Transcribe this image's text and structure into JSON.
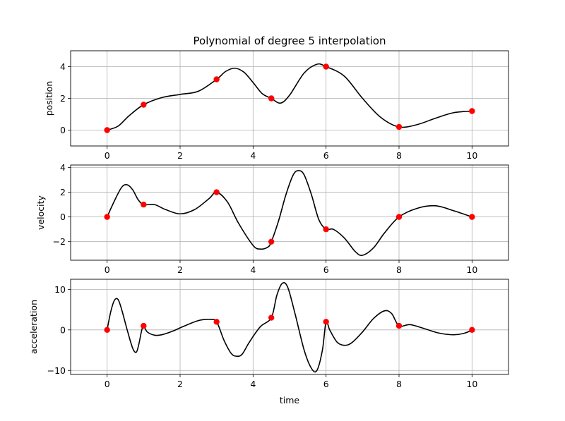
{
  "chart_data": {
    "type": "line",
    "title": "Polynomial of degree 5 interpolation",
    "xlabel": "time",
    "grid": true,
    "xlim": [
      -1,
      11
    ],
    "xticks": [
      0,
      2,
      4,
      6,
      8,
      10
    ],
    "xtick_labels": [
      "0",
      "2",
      "4",
      "6",
      "8",
      "10"
    ],
    "colors": {
      "curve": "#000000",
      "points": "#ff0000",
      "grid": "#b0b0b0"
    },
    "waypoint_times": [
      0,
      1,
      3,
      4.5,
      6,
      8,
      10
    ],
    "subplots": [
      {
        "ylabel": "position",
        "ylim": [
          -1,
          5
        ],
        "yticks": [
          0,
          2,
          4
        ],
        "ytick_labels": [
          "0",
          "2",
          "4"
        ],
        "waypoints": [
          0,
          1.6,
          3.2,
          2.0,
          4.0,
          0.2,
          1.2
        ],
        "curve": {
          "x": [
            0,
            0.3,
            0.6,
            1,
            1.5,
            2,
            2.5,
            3,
            3.25,
            3.5,
            3.75,
            4,
            4.25,
            4.5,
            4.75,
            5,
            5.4,
            5.75,
            6,
            6.5,
            7,
            7.5,
            8,
            8.5,
            9,
            9.5,
            10
          ],
          "y": [
            0,
            0.25,
            0.9,
            1.6,
            2.05,
            2.25,
            2.45,
            3.2,
            3.7,
            3.9,
            3.65,
            3.0,
            2.3,
            2.0,
            1.7,
            2.2,
            3.6,
            4.15,
            4.0,
            3.4,
            2.0,
            0.8,
            0.2,
            0.35,
            0.75,
            1.1,
            1.2
          ]
        }
      },
      {
        "ylabel": "velocity",
        "ylim": [
          -3.5,
          4.2
        ],
        "yticks": [
          -2,
          0,
          2,
          4
        ],
        "ytick_labels": [
          "−2",
          "0",
          "2",
          "4"
        ],
        "waypoints": [
          0,
          1,
          2,
          -2,
          -1,
          0,
          0
        ],
        "curve": {
          "x": [
            0,
            0.2,
            0.4,
            0.55,
            0.7,
            0.85,
            1,
            1.3,
            1.6,
            2,
            2.4,
            2.8,
            3,
            3.3,
            3.6,
            4,
            4.2,
            4.4,
            4.5,
            4.7,
            4.9,
            5.1,
            5.25,
            5.4,
            5.6,
            5.8,
            6,
            6.2,
            6.5,
            6.8,
            7,
            7.3,
            7.6,
            8,
            8.5,
            9,
            9.5,
            10
          ],
          "y": [
            0,
            1.3,
            2.4,
            2.6,
            2.2,
            1.4,
            1.0,
            1.0,
            0.6,
            0.25,
            0.6,
            1.5,
            2.0,
            1.2,
            -0.5,
            -2.3,
            -2.6,
            -2.45,
            -2.0,
            -0.3,
            1.8,
            3.4,
            3.75,
            3.4,
            1.8,
            -0.2,
            -1.0,
            -1.0,
            -1.7,
            -2.8,
            -3.1,
            -2.5,
            -1.3,
            0,
            0.7,
            0.9,
            0.5,
            0
          ]
        }
      },
      {
        "ylabel": "acceleration",
        "ylim": [
          -11,
          12.5
        ],
        "yticks": [
          -10,
          0,
          10
        ],
        "ytick_labels": [
          "−10",
          "0",
          "10"
        ],
        "waypoints": [
          0,
          1,
          2,
          3,
          2,
          1,
          0
        ],
        "curve": {
          "x": [
            0,
            0.1,
            0.2,
            0.3,
            0.4,
            0.55,
            0.7,
            0.8,
            0.87,
            0.95,
            1,
            1.1,
            1.3,
            1.5,
            1.8,
            2.1,
            2.5,
            2.8,
            3,
            3.2,
            3.4,
            3.55,
            3.7,
            3.9,
            4.2,
            4.5,
            4.65,
            4.8,
            4.95,
            5.15,
            5.4,
            5.6,
            5.75,
            5.9,
            6,
            6.1,
            6.3,
            6.5,
            6.7,
            7,
            7.3,
            7.6,
            7.8,
            8,
            8.3,
            8.7,
            9.1,
            9.5,
            9.8,
            10
          ],
          "y": [
            0,
            4.5,
            7.3,
            7.5,
            5.0,
            0,
            -4.5,
            -5.5,
            -3.5,
            0,
            1.0,
            -0.5,
            -1.3,
            -1.2,
            -0.3,
            0.9,
            2.3,
            2.6,
            2.0,
            -2.5,
            -5.8,
            -6.5,
            -6.0,
            -3.0,
            0.8,
            3.0,
            8.5,
            11.5,
            10.5,
            4.0,
            -5.0,
            -9.5,
            -10.0,
            -5.0,
            2.0,
            0,
            -3.0,
            -3.8,
            -3.2,
            -0.5,
            2.8,
            4.7,
            4.0,
            1.0,
            1.3,
            0.3,
            -0.8,
            -1.2,
            -0.8,
            0
          ]
        }
      }
    ]
  }
}
